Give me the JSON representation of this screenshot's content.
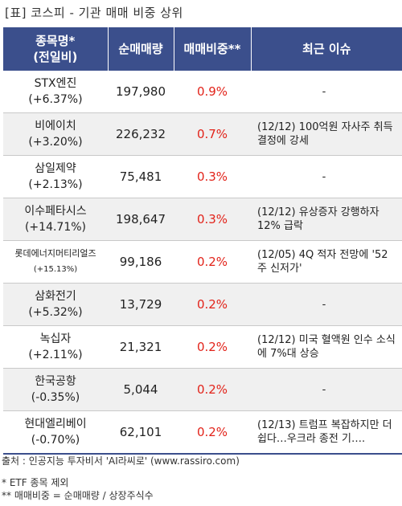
{
  "title": "[표] 코스피 - 기관 매매 비중 상위",
  "headers": {
    "name": "종목명*\n(전일비)",
    "qty": "순매매량",
    "ratio": "매매비중**",
    "issue": "최근 이슈"
  },
  "rows": [
    {
      "name": "STX엔진",
      "change": "(+6.37%)",
      "qty": "197,980",
      "ratio": "0.9%",
      "issue": "-"
    },
    {
      "name": "비에이치",
      "change": "(+3.20%)",
      "qty": "226,232",
      "ratio": "0.7%",
      "issue": "(12/12) 100억원 자사주 취득 결정에 강세"
    },
    {
      "name": "삼일제약",
      "change": "(+2.13%)",
      "qty": "75,481",
      "ratio": "0.3%",
      "issue": "-"
    },
    {
      "name": "이수페타시스",
      "change": "(+14.71%)",
      "qty": "198,647",
      "ratio": "0.3%",
      "issue": "(12/12) 유상증자 강행하자 12% 급락"
    },
    {
      "name": "롯데에너지머티리얼즈",
      "change": "(+15.13%)",
      "qty": "99,186",
      "ratio": "0.2%",
      "issue": "(12/05) 4Q 적자 전망에 '52주 신저가'"
    },
    {
      "name": "삼화전기",
      "change": "(+5.32%)",
      "qty": "13,729",
      "ratio": "0.2%",
      "issue": "-"
    },
    {
      "name": "녹십자",
      "change": "(+2.11%)",
      "qty": "21,321",
      "ratio": "0.2%",
      "issue": "(12/12) 미국 혈액원 인수 소식에 7%대 상승"
    },
    {
      "name": "한국공항",
      "change": "(-0.35%)",
      "qty": "5,044",
      "ratio": "0.2%",
      "issue": "-"
    },
    {
      "name": "현대엘리베이",
      "change": "(-0.70%)",
      "qty": "62,101",
      "ratio": "0.2%",
      "issue": "(12/13) 트럼프 복잡하지만 더 쉽다…우크라 종전 기…."
    }
  ],
  "footer": {
    "source": "출처 : 인공지능 투자비서 'AI라씨로' (www.rassiro.com)",
    "note1": "* ETF 종목 제외",
    "note2": "** 매매비중 = 순매매량 / 상장주식수"
  },
  "colors": {
    "header_bg": "#3b4f8c",
    "ratio_text": "#e2231a",
    "even_row_bg": "#f0f0f0"
  }
}
